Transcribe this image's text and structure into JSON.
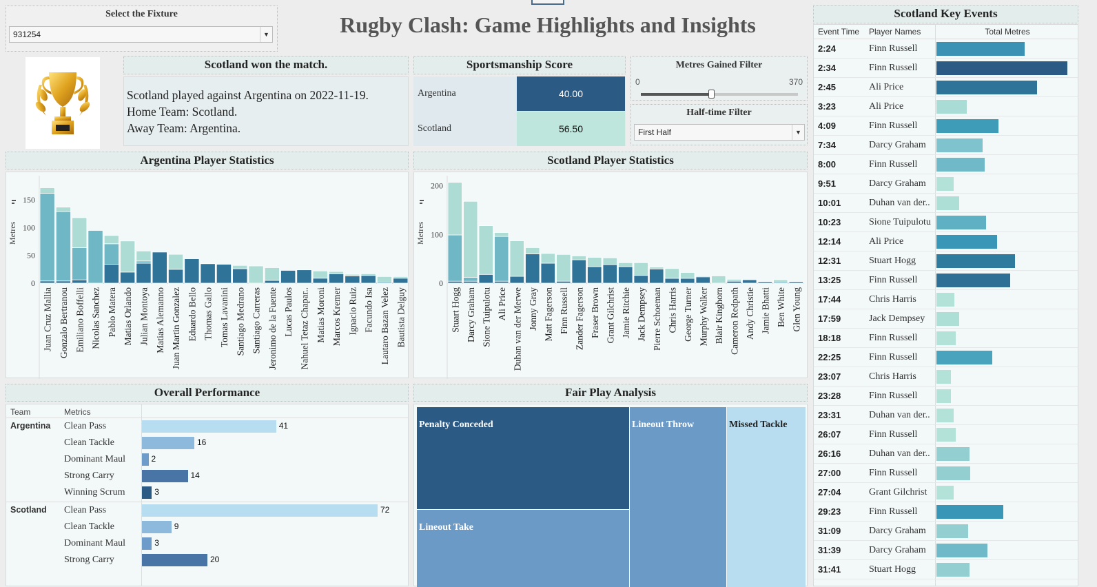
{
  "fixture": {
    "label": "Select the Fixture",
    "value": "931254"
  },
  "title": "Rugby Clash: Game Highlights and Insights",
  "result": {
    "header": "Scotland won the match.",
    "lines": [
      "Scotland played against Argentina on 2022-11-19.",
      "Home Team: Scotland.",
      "Away Team: Argentina."
    ]
  },
  "sportsmanship": {
    "header": "Sportsmanship Score",
    "rows": [
      {
        "team": "Argentina",
        "score": "40.00",
        "color": "#2b5a84"
      },
      {
        "team": "Scotland",
        "score": "56.50",
        "color": "#bfe6dc"
      }
    ]
  },
  "metres_filter": {
    "label": "Metres Gained Filter",
    "min": "0",
    "max": "370",
    "value_fraction": 0.27
  },
  "half_filter": {
    "label": "Half-time Filter",
    "value": "First Half"
  },
  "colors": {
    "dark": "#2f7398",
    "teal": "#6fb7c4",
    "light": "#acdcd4",
    "navy": "#2b5a84"
  },
  "argentina_stats": {
    "header": "Argentina Player Statistics",
    "ylabel": "Metres",
    "yticks": [
      "0",
      "50",
      "100",
      "150"
    ]
  },
  "scotland_stats": {
    "header": "Scotland Player Statistics",
    "ylabel": "Metres",
    "yticks": [
      "0",
      "100",
      "200"
    ]
  },
  "chart_data": [
    {
      "type": "bar",
      "title": "Argentina Player Statistics",
      "ylabel": "Metres",
      "ylim": [
        0,
        180
      ],
      "categories": [
        "Juan Cruz Mallia",
        "Gonzalo Bertranou",
        "Emiliano Boffelli",
        "Nicolas Sanchez",
        "Pablo Matera",
        "Matias Orlando",
        "Julian Montoya",
        "Matias Alemanno",
        "Juan Martin Gonzalez",
        "Eduardo Bello",
        "Thomas Gallo",
        "Tomas Lavanini",
        "Santiago Medrano",
        "Santiago Carreras",
        "Jeronimo de la Fuente",
        "Lucas Paulos",
        "Nahuel Tetaz Chapar..",
        "Matias Moroni",
        "Marcos Kremer",
        "Ignacio Ruiz",
        "Facundo Isa",
        "Lautaro Bazan Velez",
        "Bautista Delguy"
      ],
      "stacks": [
        [
          {
            "v": 4,
            "c": "dark"
          },
          {
            "v": 158,
            "c": "teal"
          },
          {
            "v": 10,
            "c": "light"
          }
        ],
        [
          {
            "v": 4,
            "c": "dark"
          },
          {
            "v": 125,
            "c": "teal"
          },
          {
            "v": 8,
            "c": "light"
          }
        ],
        [
          {
            "v": 6,
            "c": "dark"
          },
          {
            "v": 58,
            "c": "teal"
          },
          {
            "v": 54,
            "c": "light"
          }
        ],
        [
          {
            "v": 95,
            "c": "teal"
          }
        ],
        [
          {
            "v": 34,
            "c": "dark"
          },
          {
            "v": 37,
            "c": "teal"
          },
          {
            "v": 15,
            "c": "light"
          }
        ],
        [
          {
            "v": 20,
            "c": "dark"
          },
          {
            "v": 56,
            "c": "light"
          }
        ],
        [
          {
            "v": 36,
            "c": "dark"
          },
          {
            "v": 4,
            "c": "teal"
          },
          {
            "v": 18,
            "c": "light"
          }
        ],
        [
          {
            "v": 56,
            "c": "dark"
          }
        ],
        [
          {
            "v": 25,
            "c": "dark"
          },
          {
            "v": 27,
            "c": "light"
          }
        ],
        [
          {
            "v": 44,
            "c": "dark"
          }
        ],
        [
          {
            "v": 35,
            "c": "dark"
          }
        ],
        [
          {
            "v": 34,
            "c": "dark"
          }
        ],
        [
          {
            "v": 26,
            "c": "dark"
          },
          {
            "v": 6,
            "c": "light"
          }
        ],
        [
          {
            "v": 31,
            "c": "light"
          }
        ],
        [
          {
            "v": 5,
            "c": "dark"
          },
          {
            "v": 23,
            "c": "light"
          }
        ],
        [
          {
            "v": 23,
            "c": "dark"
          }
        ],
        [
          {
            "v": 24,
            "c": "dark"
          }
        ],
        [
          {
            "v": 9,
            "c": "dark"
          },
          {
            "v": 13,
            "c": "light"
          }
        ],
        [
          {
            "v": 17,
            "c": "dark"
          },
          {
            "v": 4,
            "c": "light"
          }
        ],
        [
          {
            "v": 13,
            "c": "dark"
          },
          {
            "v": 3,
            "c": "light"
          }
        ],
        [
          {
            "v": 14,
            "c": "dark"
          },
          {
            "v": 3,
            "c": "light"
          }
        ],
        [
          {
            "v": 2,
            "c": "dark"
          },
          {
            "v": 10,
            "c": "light"
          }
        ],
        [
          {
            "v": 9,
            "c": "dark"
          },
          {
            "v": 3,
            "c": "light"
          }
        ]
      ]
    },
    {
      "type": "bar",
      "title": "Scotland Player Statistics",
      "ylabel": "Metres",
      "ylim": [
        0,
        215
      ],
      "categories": [
        "Stuart Hogg",
        "Darcy Graham",
        "Sione Tuipulotu",
        "Ali Price",
        "Duhan van der Merwe",
        "Jonny Gray",
        "Matt Fagerson",
        "Finn Russell",
        "Zander Fagerson",
        "Fraser Brown",
        "Grant Gilchrist",
        "Jamie Ritchie",
        "Jack Dempsey",
        "Pierre Schoeman",
        "Chris Harris",
        "George Turner",
        "Murphy Walker",
        "Blair Kinghorn",
        "Cameron Redpath",
        "Andy Christie",
        "Jamie Bhatti",
        "Ben White",
        "Glen Young"
      ],
      "stacks": [
        [
          {
            "v": 4,
            "c": "dark"
          },
          {
            "v": 95,
            "c": "teal"
          },
          {
            "v": 108,
            "c": "light"
          }
        ],
        [
          {
            "v": 4,
            "c": "dark"
          },
          {
            "v": 8,
            "c": "teal"
          },
          {
            "v": 156,
            "c": "light"
          }
        ],
        [
          {
            "v": 18,
            "c": "dark"
          },
          {
            "v": 100,
            "c": "light"
          }
        ],
        [
          {
            "v": 4,
            "c": "dark"
          },
          {
            "v": 92,
            "c": "teal"
          },
          {
            "v": 8,
            "c": "light"
          }
        ],
        [
          {
            "v": 14,
            "c": "dark"
          },
          {
            "v": 73,
            "c": "light"
          }
        ],
        [
          {
            "v": 60,
            "c": "dark"
          },
          {
            "v": 13,
            "c": "light"
          }
        ],
        [
          {
            "v": 41,
            "c": "dark"
          },
          {
            "v": 20,
            "c": "light"
          }
        ],
        [
          {
            "v": 4,
            "c": "dark"
          },
          {
            "v": 55,
            "c": "light"
          }
        ],
        [
          {
            "v": 48,
            "c": "dark"
          },
          {
            "v": 8,
            "c": "light"
          }
        ],
        [
          {
            "v": 34,
            "c": "dark"
          },
          {
            "v": 19,
            "c": "light"
          }
        ],
        [
          {
            "v": 38,
            "c": "dark"
          },
          {
            "v": 14,
            "c": "light"
          }
        ],
        [
          {
            "v": 34,
            "c": "dark"
          },
          {
            "v": 8,
            "c": "light"
          }
        ],
        [
          {
            "v": 16,
            "c": "dark"
          },
          {
            "v": 26,
            "c": "light"
          }
        ],
        [
          {
            "v": 29,
            "c": "dark"
          },
          {
            "v": 4,
            "c": "light"
          }
        ],
        [
          {
            "v": 10,
            "c": "dark"
          },
          {
            "v": 20,
            "c": "light"
          }
        ],
        [
          {
            "v": 10,
            "c": "dark"
          },
          {
            "v": 12,
            "c": "light"
          }
        ],
        [
          {
            "v": 13,
            "c": "dark"
          },
          {
            "v": 2,
            "c": "light"
          }
        ],
        [
          {
            "v": 15,
            "c": "light"
          }
        ],
        [
          {
            "v": 4,
            "c": "dark"
          },
          {
            "v": 4,
            "c": "light"
          }
        ],
        [
          {
            "v": 7,
            "c": "dark"
          }
        ],
        [
          {
            "v": 3,
            "c": "dark"
          }
        ],
        [
          {
            "v": 2,
            "c": "dark"
          },
          {
            "v": 5,
            "c": "light"
          }
        ],
        [
          {
            "v": 3,
            "c": "dark"
          }
        ]
      ]
    }
  ],
  "overall": {
    "header": "Overall Performance",
    "col_team": "Team",
    "col_metrics": "Metrics",
    "rows": [
      {
        "team": "Argentina",
        "metric": "Clean Pass",
        "value": 41,
        "color": "#b7ddf0"
      },
      {
        "team": "",
        "metric": "Clean Tackle",
        "value": 16,
        "color": "#8dbadc"
      },
      {
        "team": "",
        "metric": "Dominant Maul",
        "value": 2,
        "color": "#6d9ccb"
      },
      {
        "team": "",
        "metric": "Strong Carry",
        "value": 14,
        "color": "#4875a6"
      },
      {
        "team": "",
        "metric": "Winning Scrum",
        "value": 3,
        "color": "#2b5a84"
      },
      {
        "team": "Scotland",
        "metric": "Clean Pass",
        "value": 72,
        "color": "#b7ddf0"
      },
      {
        "team": "",
        "metric": "Clean Tackle",
        "value": 9,
        "color": "#8dbadc"
      },
      {
        "team": "",
        "metric": "Dominant Maul",
        "value": 3,
        "color": "#6d9ccb"
      },
      {
        "team": "",
        "metric": "Strong Carry",
        "value": 20,
        "color": "#4875a6"
      }
    ]
  },
  "fairplay": {
    "header": "Fair Play Analysis",
    "cells": [
      {
        "label": "Penalty Conceded",
        "color": "#2b5a84"
      },
      {
        "label": "Lineout Take",
        "color": "#6c9ac6"
      },
      {
        "label": "Lineout Throw",
        "color": "#6c9ac6"
      },
      {
        "label": "Missed Tackle",
        "color": "#b8dcf0"
      }
    ]
  },
  "events": {
    "header": "Scotland Key Events",
    "col_time": "Event Time",
    "col_player": "Player Names",
    "col_metres": "Total Metres",
    "rows": [
      {
        "time": "2:24",
        "player": "Finn Russell",
        "metres": 73,
        "color": "#3a91b3"
      },
      {
        "time": "2:34",
        "player": "Finn Russell",
        "metres": 108,
        "color": "#2b5a84"
      },
      {
        "time": "2:45",
        "player": "Ali Price",
        "metres": 83,
        "color": "#2f7398"
      },
      {
        "time": "3:23",
        "player": "Ali Price",
        "metres": 25,
        "color": "#a9dcd4"
      },
      {
        "time": "4:09",
        "player": "Finn Russell",
        "metres": 51,
        "color": "#3f9cb8"
      },
      {
        "time": "7:34",
        "player": "Darcy Graham",
        "metres": 38,
        "color": "#7ec3cd"
      },
      {
        "time": "8:00",
        "player": "Finn Russell",
        "metres": 40,
        "color": "#6fb9c8"
      },
      {
        "time": "9:51",
        "player": "Darcy Graham",
        "metres": 14,
        "color": "#b3e2d8"
      },
      {
        "time": "10:01",
        "player": "Duhan van der..",
        "metres": 19,
        "color": "#aedfd6"
      },
      {
        "time": "10:23",
        "player": "Sione Tuipulotu",
        "metres": 41,
        "color": "#5fb0c3"
      },
      {
        "time": "12:14",
        "player": "Ali Price",
        "metres": 50,
        "color": "#3a96b6"
      },
      {
        "time": "12:31",
        "player": "Stuart Hogg",
        "metres": 65,
        "color": "#2f7b9e"
      },
      {
        "time": "13:25",
        "player": "Finn Russell",
        "metres": 61,
        "color": "#2e6f96"
      },
      {
        "time": "17:44",
        "player": "Chris Harris",
        "metres": 15,
        "color": "#b3e2d8"
      },
      {
        "time": "17:59",
        "player": "Jack Dempsey",
        "metres": 19,
        "color": "#aedfd6"
      },
      {
        "time": "18:18",
        "player": "Finn Russell",
        "metres": 16,
        "color": "#b3e2d8"
      },
      {
        "time": "22:25",
        "player": "Finn Russell",
        "metres": 46,
        "color": "#4aa3bc"
      },
      {
        "time": "23:07",
        "player": "Chris Harris",
        "metres": 12,
        "color": "#b3e2d8"
      },
      {
        "time": "23:28",
        "player": "Finn Russell",
        "metres": 12,
        "color": "#b3e2d8"
      },
      {
        "time": "23:31",
        "player": "Duhan van der..",
        "metres": 14,
        "color": "#b3e2d8"
      },
      {
        "time": "26:07",
        "player": "Finn Russell",
        "metres": 16,
        "color": "#b3e2d8"
      },
      {
        "time": "26:16",
        "player": "Duhan van der..",
        "metres": 27,
        "color": "#93ced1"
      },
      {
        "time": "27:00",
        "player": "Finn Russell",
        "metres": 28,
        "color": "#93ced1"
      },
      {
        "time": "27:04",
        "player": "Grant Gilchrist",
        "metres": 14,
        "color": "#b3e2d8"
      },
      {
        "time": "29:23",
        "player": "Finn Russell",
        "metres": 55,
        "color": "#3a96b6"
      },
      {
        "time": "31:09",
        "player": "Darcy Graham",
        "metres": 26,
        "color": "#93ced1"
      },
      {
        "time": "31:39",
        "player": "Darcy Graham",
        "metres": 42,
        "color": "#6fb9c8"
      },
      {
        "time": "31:41",
        "player": "Stuart Hogg",
        "metres": 27,
        "color": "#93ced1"
      }
    ]
  }
}
